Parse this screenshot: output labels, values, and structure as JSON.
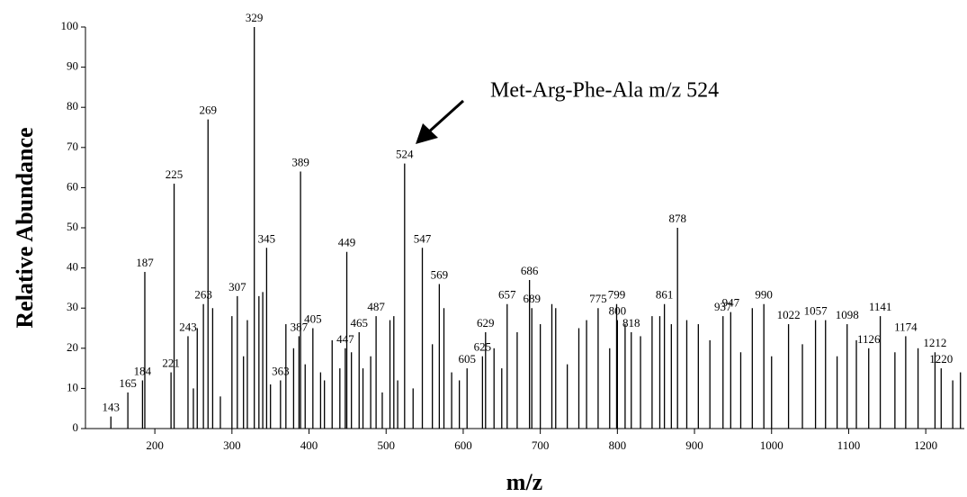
{
  "chart_data": {
    "type": "spectrum",
    "xlabel": "m/z",
    "ylabel": "Relative Abundance",
    "annotation": "Met-Arg-Phe-Ala  m/z  524",
    "xlim": [
      110,
      1250
    ],
    "ylim": [
      0,
      100
    ],
    "xticks": [
      200,
      300,
      400,
      500,
      600,
      700,
      800,
      900,
      1000,
      1100,
      1200
    ],
    "yticks": [
      0,
      10,
      20,
      30,
      40,
      50,
      60,
      70,
      80,
      90,
      100
    ],
    "color": "#000000",
    "series": [
      {
        "x": [
          143,
          165,
          184,
          187,
          221,
          225,
          243,
          263,
          269,
          307,
          329,
          345,
          363,
          387,
          389,
          405,
          447,
          449,
          465,
          487,
          524,
          547,
          569,
          605,
          625,
          629,
          657,
          686,
          689,
          775,
          799,
          800,
          818,
          861,
          878,
          937,
          947,
          990,
          1022,
          1057,
          1098,
          1126,
          1141,
          1174,
          1212,
          1220
        ],
        "values": [
          3,
          9,
          12,
          39,
          14,
          61,
          23,
          31,
          77,
          33,
          100,
          45,
          12,
          23,
          64,
          25,
          20,
          44,
          24,
          28,
          66,
          45,
          36,
          15,
          18,
          24,
          31,
          37,
          30,
          30,
          31,
          27,
          24,
          31,
          50,
          28,
          29,
          31,
          26,
          27,
          26,
          20,
          28,
          23,
          19,
          15
        ]
      },
      {
        "x": [
          250,
          255,
          275,
          285,
          300,
          315,
          320,
          335,
          340,
          350,
          370,
          380,
          395,
          415,
          420,
          430,
          440,
          455,
          470,
          480,
          495,
          505,
          510,
          515,
          535,
          560,
          575,
          585,
          595,
          640,
          650,
          670,
          700,
          715,
          720,
          735,
          750,
          760,
          790,
          810,
          830,
          845,
          855,
          870,
          890,
          905,
          920,
          960,
          975,
          1000,
          1040,
          1070,
          1085,
          1110,
          1160,
          1190,
          1235,
          1245
        ],
        "values": [
          10,
          25,
          30,
          8,
          28,
          18,
          27,
          33,
          34,
          11,
          26,
          20,
          16,
          14,
          12,
          22,
          15,
          19,
          15,
          18,
          9,
          27,
          28,
          12,
          10,
          21,
          30,
          14,
          12,
          20,
          15,
          24,
          26,
          31,
          30,
          16,
          25,
          27,
          20,
          26,
          23,
          28,
          28,
          26,
          27,
          26,
          22,
          19,
          30,
          18,
          21,
          27,
          18,
          22,
          19,
          20,
          12,
          14
        ]
      }
    ]
  }
}
